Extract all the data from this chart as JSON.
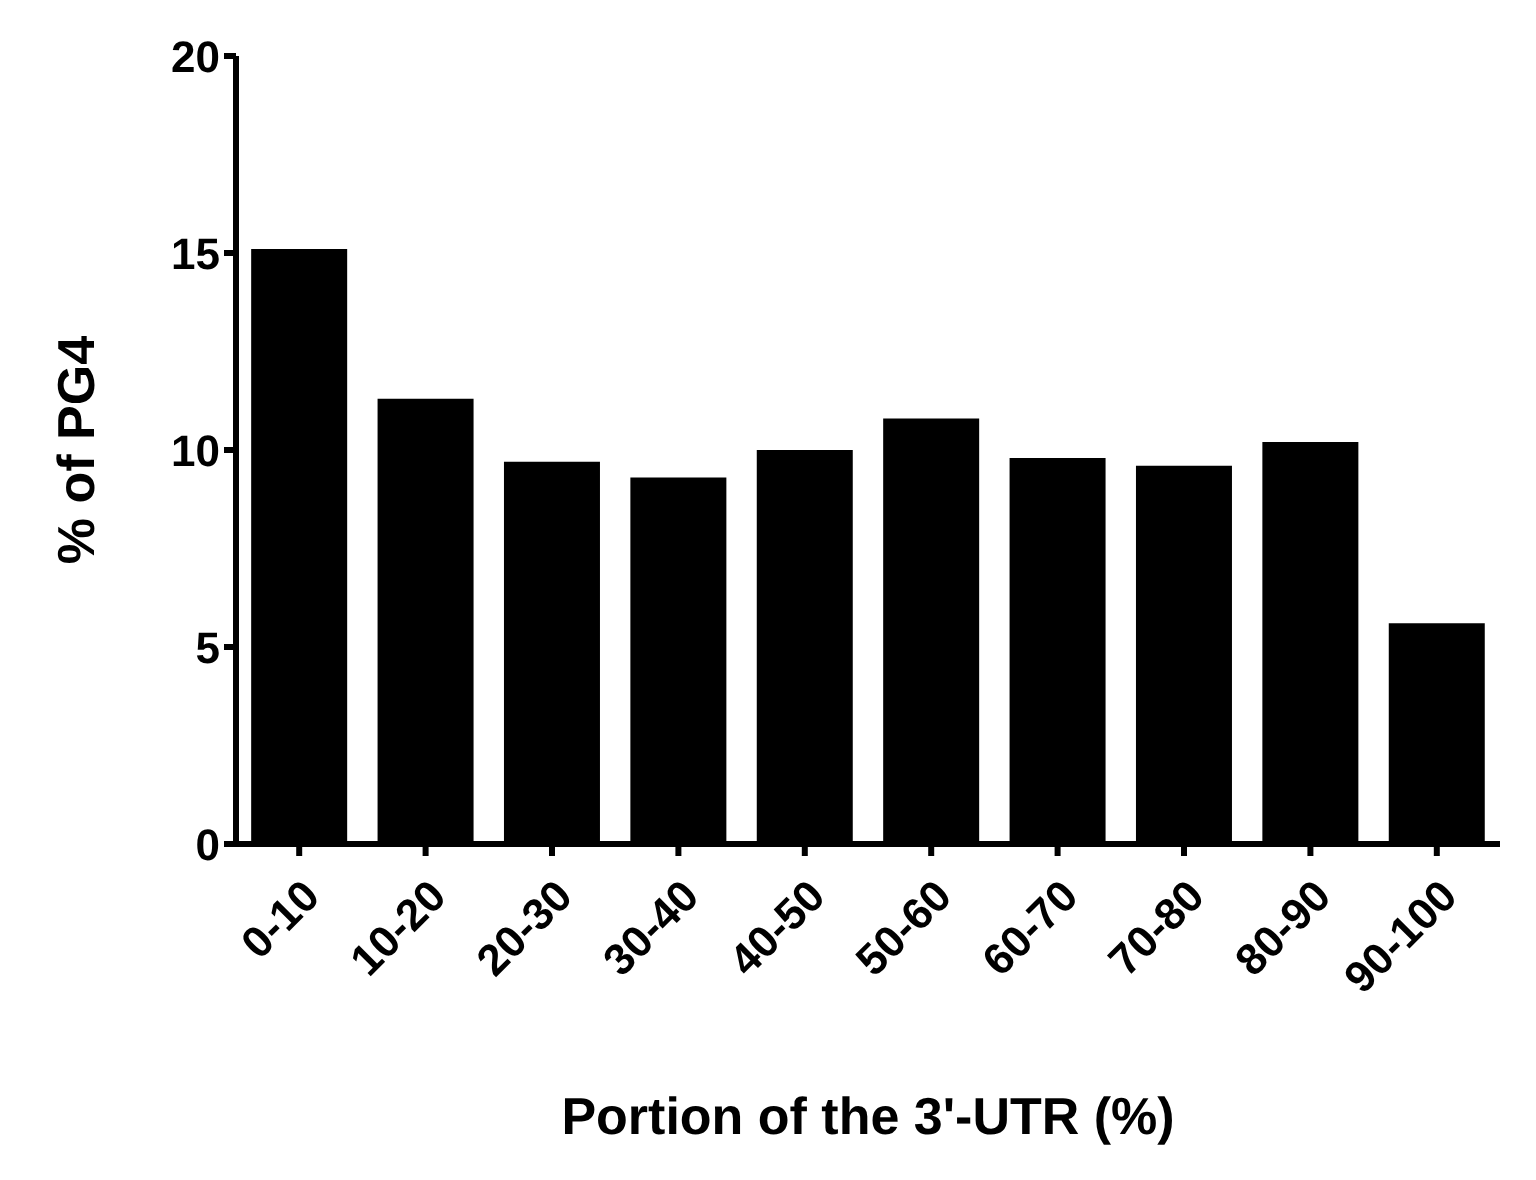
{
  "chart_data": {
    "type": "bar",
    "xlabel": "Portion of the 3'-UTR (%)",
    "ylabel": "% of PG4",
    "categories": [
      "0-10",
      "10-20",
      "20-30",
      "30-40",
      "40-50",
      "50-60",
      "60-70",
      "70-80",
      "80-90",
      "90-100"
    ],
    "values": [
      15.1,
      11.3,
      9.7,
      9.3,
      10.0,
      10.8,
      9.8,
      9.6,
      10.2,
      5.6
    ],
    "color": "#000000",
    "ylim": [
      0,
      20
    ],
    "yticks": [
      0,
      5,
      10,
      15,
      20
    ],
    "grid": false,
    "legend": false
  }
}
